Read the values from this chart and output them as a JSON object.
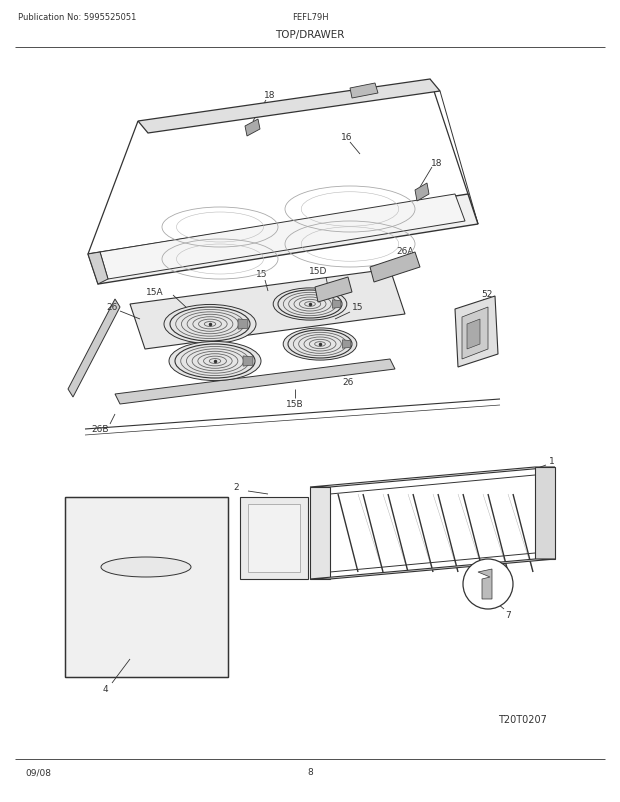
{
  "pub_no": "Publication No: 5995525051",
  "model": "FEFL79H",
  "section": "TOP/DRAWER",
  "date": "09/08",
  "page": "8",
  "diagram_id": "T20T0207",
  "bg_color": "#ffffff",
  "lc": "#333333"
}
